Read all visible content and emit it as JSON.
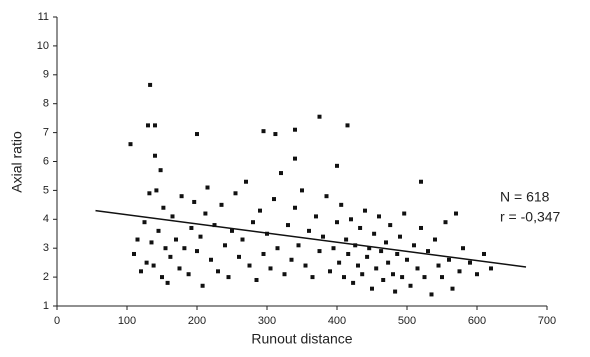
{
  "chart_data": {
    "type": "scatter",
    "x_label": "Runout distance",
    "y_label": "Axial ratio",
    "annotations": [
      "N = 618",
      "r = -0,347"
    ],
    "xlim": [
      0,
      700
    ],
    "ylim": [
      1,
      11
    ],
    "xticks": [
      0,
      100,
      200,
      300,
      400,
      500,
      600,
      700
    ],
    "yticks": [
      1,
      2,
      3,
      4,
      5,
      6,
      7,
      8,
      9,
      10,
      11
    ],
    "color": "#111111",
    "trendline": {
      "x": [
        55,
        670
      ],
      "y": [
        4.3,
        2.35
      ]
    },
    "x": [
      133,
      130,
      140,
      105,
      200,
      295,
      312,
      340,
      375,
      415,
      400,
      520,
      140,
      148,
      340,
      110,
      115,
      120,
      125,
      128,
      132,
      135,
      138,
      142,
      145,
      150,
      152,
      155,
      158,
      162,
      165,
      170,
      175,
      178,
      182,
      188,
      192,
      196,
      200,
      205,
      208,
      212,
      215,
      220,
      225,
      230,
      235,
      240,
      245,
      250,
      255,
      260,
      265,
      270,
      275,
      280,
      285,
      290,
      295,
      300,
      305,
      310,
      315,
      320,
      325,
      330,
      335,
      340,
      345,
      350,
      355,
      360,
      365,
      370,
      375,
      380,
      385,
      390,
      395,
      400,
      403,
      406,
      410,
      413,
      416,
      420,
      423,
      426,
      430,
      433,
      436,
      440,
      443,
      446,
      450,
      453,
      456,
      460,
      463,
      466,
      470,
      473,
      476,
      480,
      483,
      486,
      490,
      493,
      496,
      500,
      505,
      510,
      515,
      520,
      525,
      530,
      535,
      540,
      545,
      550,
      555,
      560,
      565,
      570,
      575,
      580,
      590,
      600,
      610,
      620
    ],
    "y": [
      8.65,
      7.25,
      7.25,
      6.6,
      6.95,
      7.05,
      6.95,
      7.1,
      7.55,
      7.25,
      5.85,
      5.3,
      6.2,
      5.7,
      6.1,
      2.8,
      3.3,
      2.2,
      3.9,
      2.5,
      4.9,
      3.2,
      2.4,
      5.0,
      3.6,
      2.0,
      4.4,
      3.0,
      1.8,
      2.7,
      4.1,
      3.3,
      2.3,
      4.8,
      3.0,
      2.1,
      3.7,
      4.6,
      2.9,
      3.4,
      1.7,
      4.2,
      5.1,
      2.6,
      3.8,
      2.2,
      4.5,
      3.1,
      2.0,
      3.6,
      4.9,
      2.7,
      3.3,
      5.3,
      2.4,
      3.9,
      1.9,
      4.3,
      2.8,
      3.5,
      2.3,
      4.7,
      3.0,
      5.6,
      2.1,
      3.8,
      2.6,
      4.4,
      3.1,
      5.0,
      2.4,
      3.6,
      2.0,
      4.1,
      2.9,
      3.4,
      4.8,
      2.2,
      3.0,
      3.9,
      2.5,
      4.5,
      2.0,
      3.3,
      2.8,
      4.0,
      1.8,
      3.1,
      2.4,
      3.7,
      2.1,
      4.3,
      2.7,
      3.0,
      1.6,
      3.5,
      2.3,
      4.1,
      2.9,
      1.9,
      3.2,
      2.5,
      3.8,
      2.1,
      1.5,
      2.8,
      3.4,
      2.0,
      4.2,
      2.6,
      1.7,
      3.1,
      2.3,
      3.7,
      2.0,
      2.9,
      1.4,
      3.3,
      2.4,
      2.0,
      3.9,
      2.6,
      1.6,
      4.2,
      2.2,
      3.0,
      2.5,
      2.1,
      2.8,
      2.3
    ]
  }
}
